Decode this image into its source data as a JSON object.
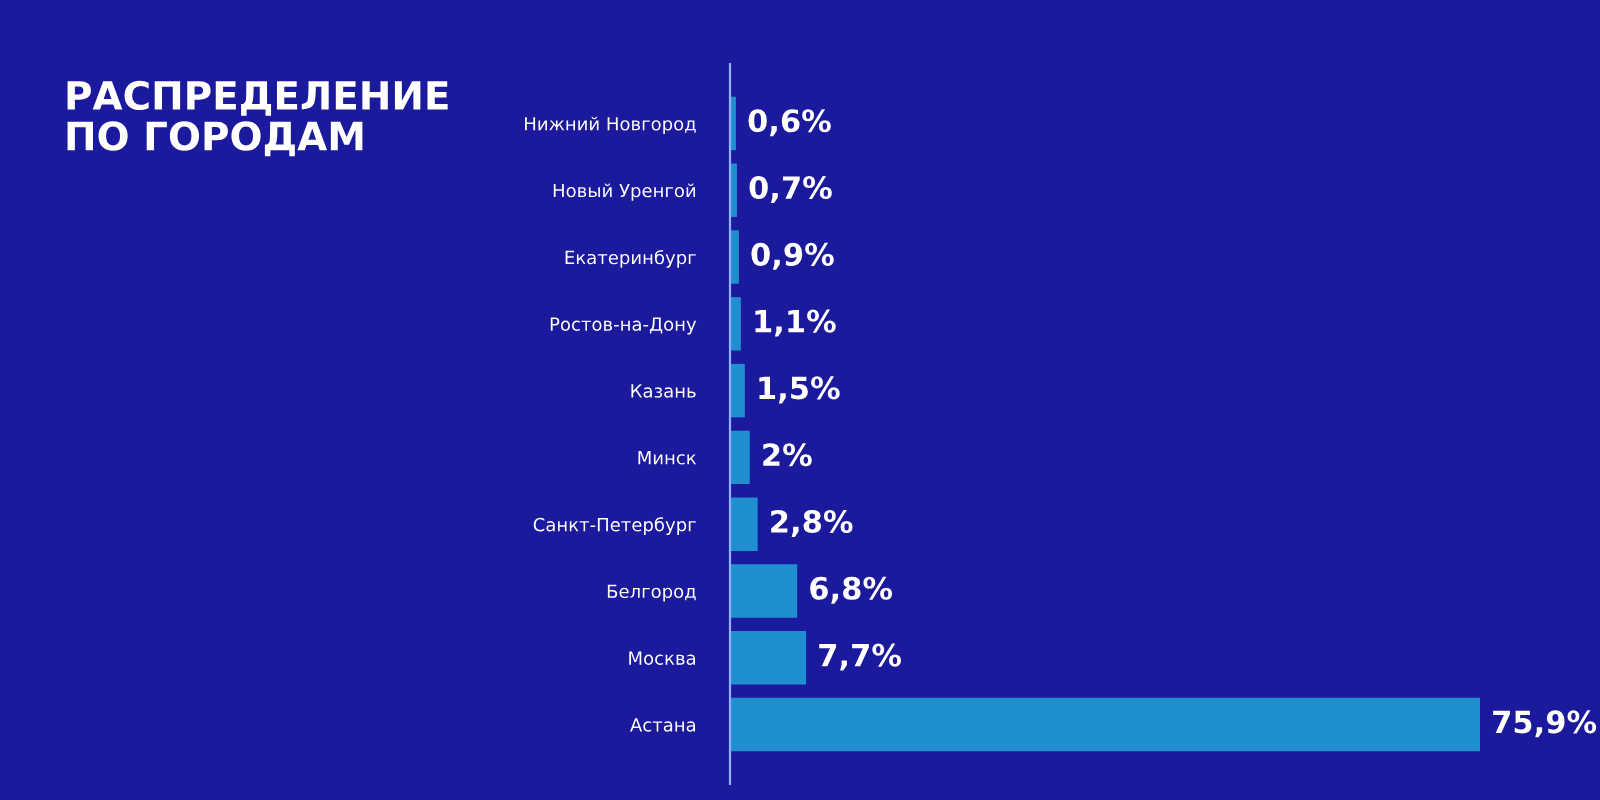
{
  "chart_data": {
    "type": "bar",
    "orientation": "horizontal",
    "title": "РАСПРЕДЕЛЕНИЕ\nПО ГОРОДАМ",
    "categories": [
      "Нижний Новгород",
      "Новый Уренгой",
      "Екатеринбург",
      "Ростов-на-Дону",
      "Казань",
      "Минск",
      "Санкт-Петербург",
      "Белгород",
      "Москва",
      "Астана"
    ],
    "values": [
      0.6,
      0.7,
      0.9,
      1.1,
      1.5,
      2,
      2.8,
      6.8,
      7.7,
      75.9
    ],
    "value_labels": [
      "0,6%",
      "0,7%",
      "0,9%",
      "1,1%",
      "1,5%",
      "2%",
      "2,8%",
      "6,8%",
      "7,7%",
      "75,9%"
    ],
    "color": "#1f8fd0",
    "grid": false,
    "legend": false
  }
}
